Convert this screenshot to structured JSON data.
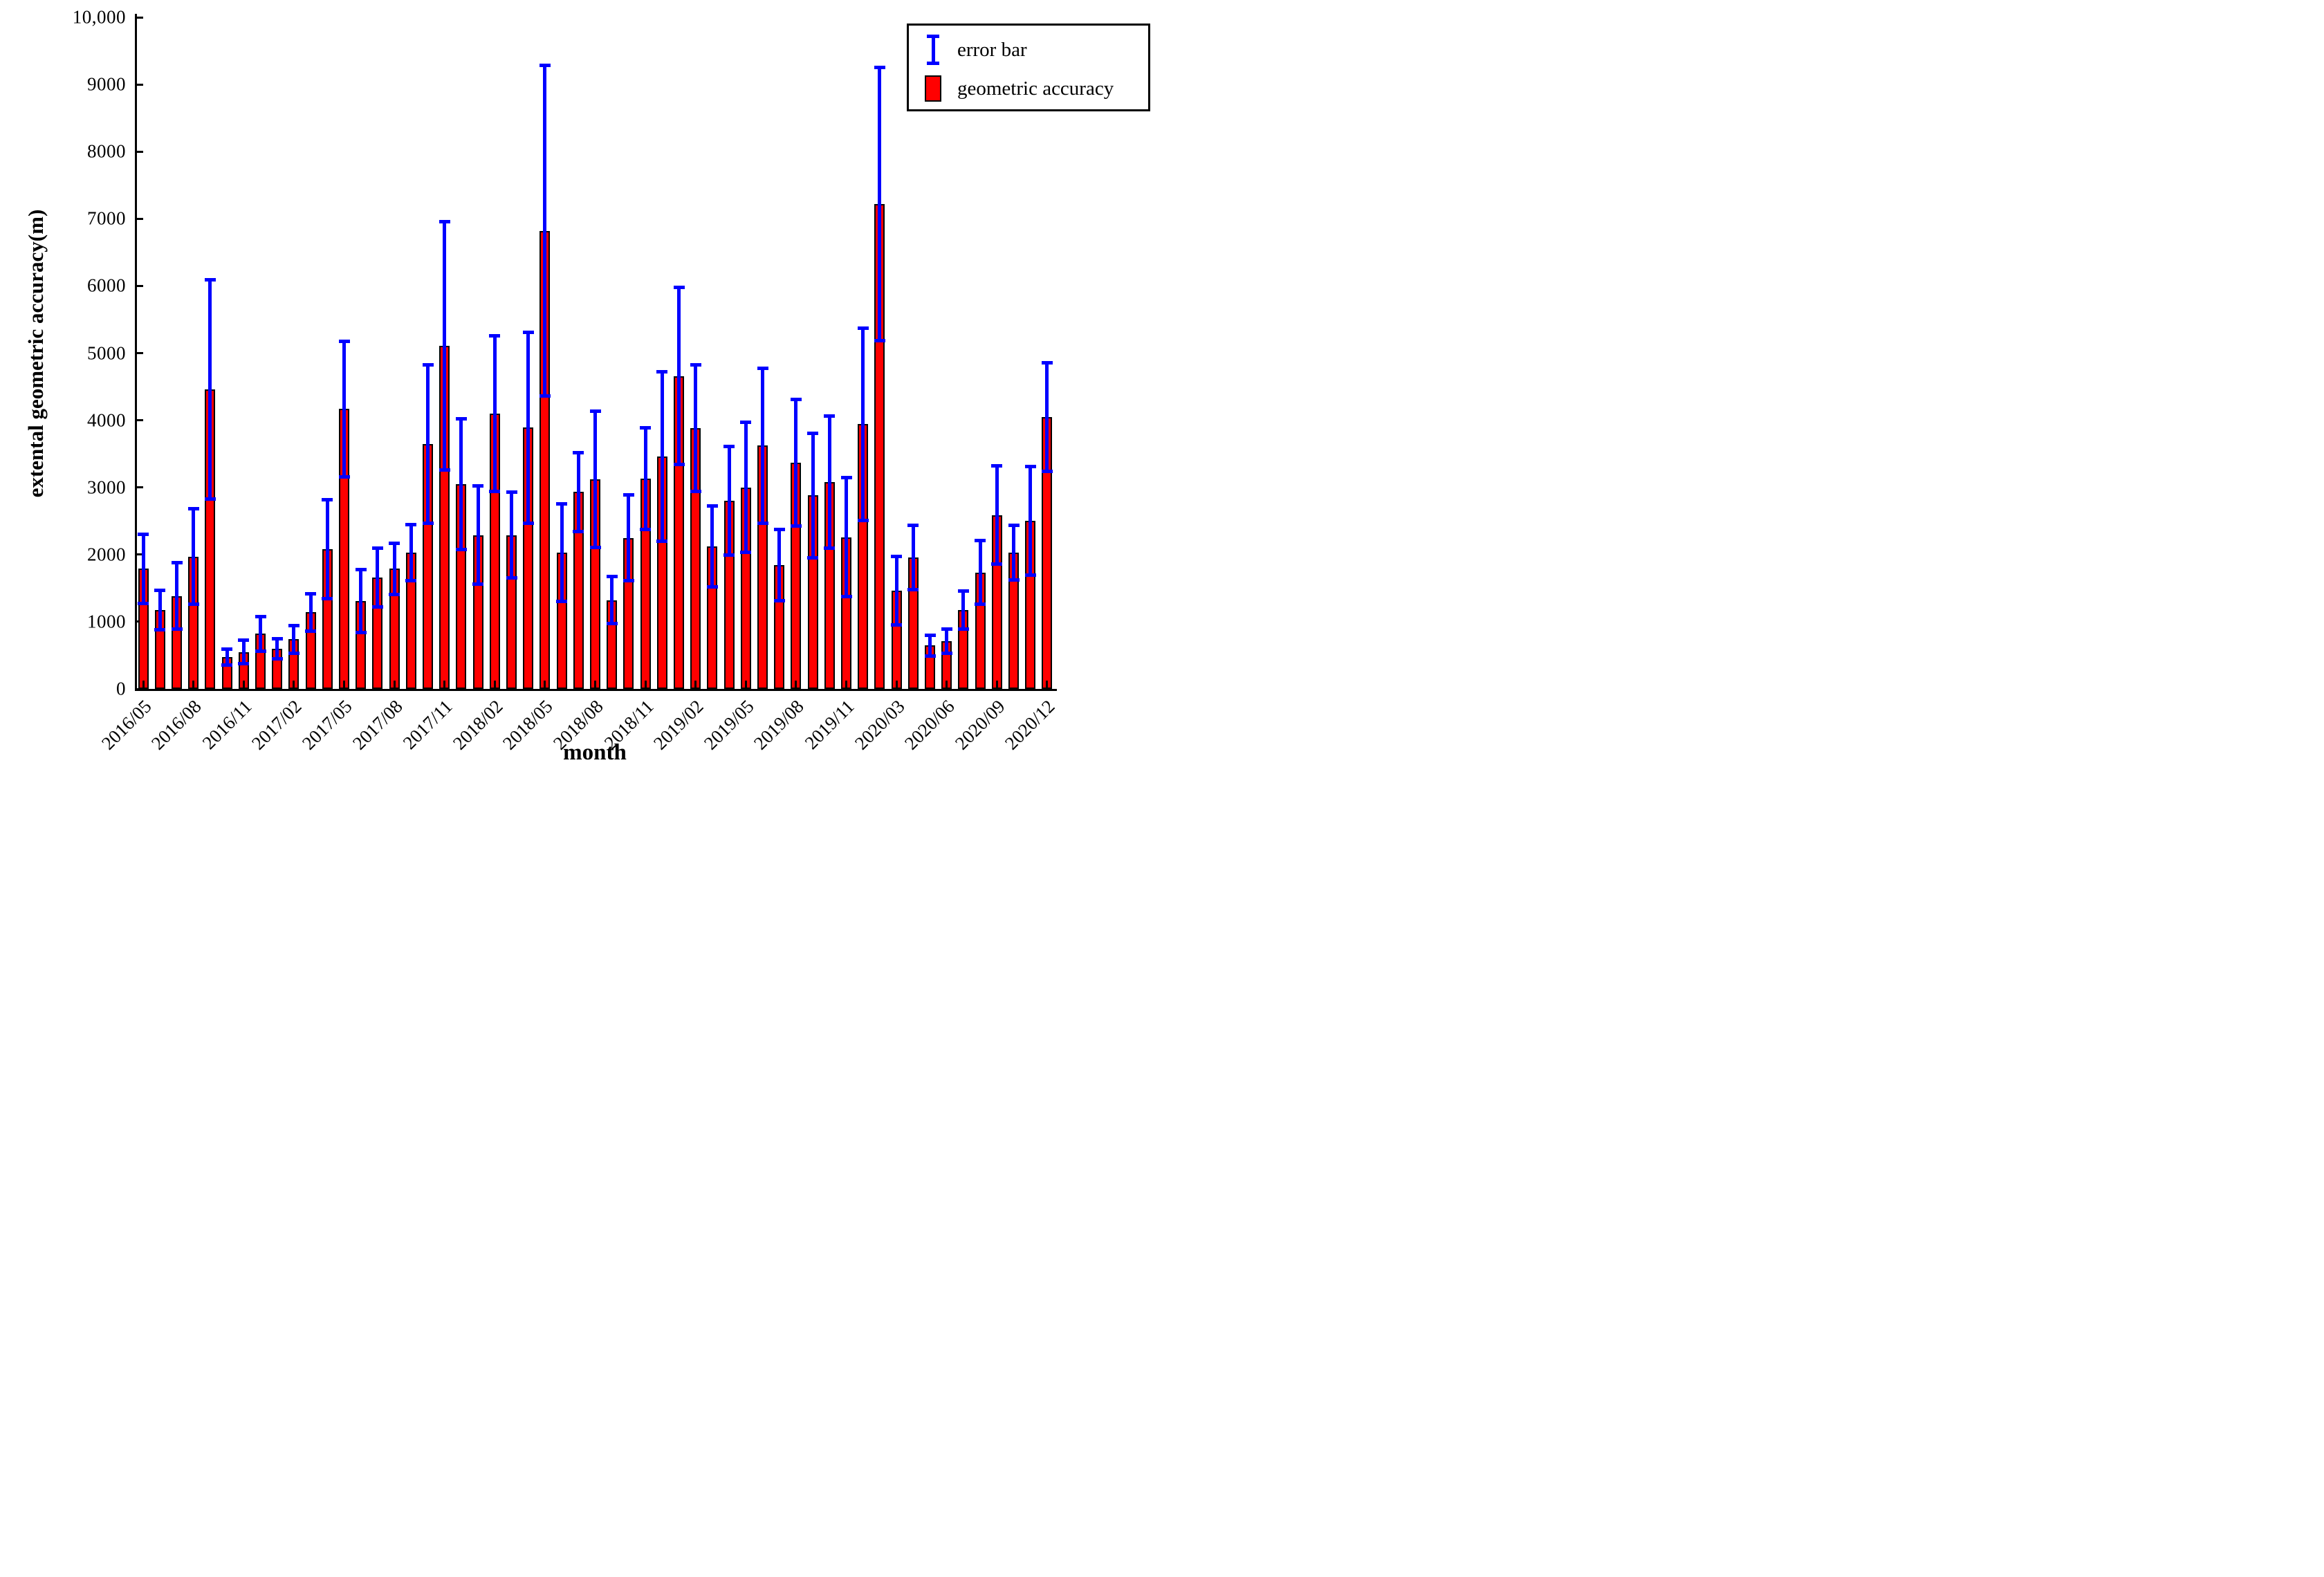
{
  "colors": {
    "bar_fill": "#ff0000",
    "bar_edge": "#000000",
    "error_bar": "#0000ff",
    "axis": "#000000",
    "background": "#ffffff"
  },
  "chart_data": {
    "type": "bar",
    "title": "",
    "xlabel": "month",
    "ylabel": "extental geometric accuracy(m)",
    "ylim": [
      0,
      10000
    ],
    "ytick_step": 1000,
    "ytick_labels": [
      "0",
      "1000",
      "2000",
      "3000",
      "4000",
      "5000",
      "6000",
      "7000",
      "8000",
      "9000",
      "10,000"
    ],
    "xtick_every": 3,
    "grid": false,
    "legend_position": "top-right",
    "legend": [
      {
        "label": "error bar",
        "glyph": "errorbar",
        "color": "#0000ff"
      },
      {
        "label": "geometric accuracy",
        "glyph": "bar",
        "color": "#ff0000"
      }
    ],
    "categories": [
      "2016/05",
      "2016/06",
      "2016/07",
      "2016/08",
      "2016/09",
      "2016/10",
      "2016/11",
      "2016/12",
      "2017/01",
      "2017/02",
      "2017/03",
      "2017/04",
      "2017/05",
      "2017/06",
      "2017/07",
      "2017/08",
      "2017/09",
      "2017/10",
      "2017/11",
      "2017/12",
      "2018/01",
      "2018/02",
      "2018/03",
      "2018/04",
      "2018/05",
      "2018/06",
      "2018/07",
      "2018/08",
      "2018/09",
      "2018/10",
      "2018/11",
      "2018/12",
      "2019/01",
      "2019/02",
      "2019/03",
      "2019/04",
      "2019/05",
      "2019/06",
      "2019/07",
      "2019/08",
      "2019/09",
      "2019/10",
      "2019/11",
      "2019/12",
      "2020/02",
      "2020/03",
      "2020/04",
      "2020/05",
      "2020/06",
      "2020/07",
      "2020/08",
      "2020/09",
      "2020/10",
      "2020/11",
      "2020/12"
    ],
    "series": [
      {
        "name": "geometric accuracy",
        "values": [
          1790,
          1175,
          1385,
          1970,
          4460,
          475,
          550,
          820,
          600,
          740,
          1140,
          2080,
          4170,
          1310,
          1660,
          1790,
          2030,
          3650,
          5110,
          3050,
          2290,
          4100,
          2290,
          3890,
          6820,
          2030,
          2930,
          3120,
          1320,
          2250,
          3130,
          3460,
          4660,
          3880,
          2120,
          2800,
          3000,
          3620,
          1840,
          3370,
          2880,
          3080,
          2260,
          3940,
          7220,
          1460,
          1960,
          645,
          715,
          1175,
          1735,
          2590,
          2030,
          2500,
          4050
        ]
      },
      {
        "name": "error",
        "values": [
          515,
          290,
          495,
          710,
          1630,
          120,
          175,
          255,
          150,
          205,
          280,
          740,
          1010,
          470,
          440,
          380,
          420,
          1180,
          1850,
          970,
          730,
          1160,
          640,
          1420,
          2460,
          730,
          590,
          1010,
          350,
          640,
          760,
          1260,
          1320,
          940,
          600,
          810,
          970,
          1150,
          530,
          940,
          930,
          980,
          890,
          1430,
          2030,
          510,
          480,
          155,
          180,
          280,
          470,
          730,
          410,
          810,
          810
        ]
      }
    ]
  }
}
